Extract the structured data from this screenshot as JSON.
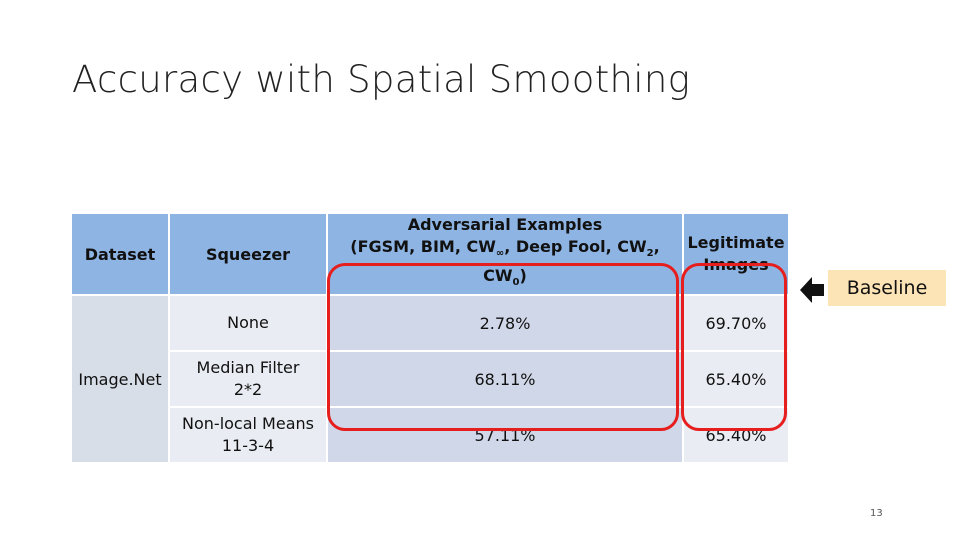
{
  "slide": {
    "title": "Accuracy with Spatial Smoothing",
    "page_number": "13"
  },
  "table": {
    "headers": {
      "dataset": "Dataset",
      "squeezer": "Squeezer",
      "adversarial_line1": "Adversarial Examples",
      "adversarial_line2": "(FGSM, BIM, CW∞, Deep Fool, CW2, CW0)",
      "legitimate_line1": "Legitimate",
      "legitimate_line2": "Images"
    },
    "dataset_name": "Image.Net",
    "rows": [
      {
        "squeezer_line1": "None",
        "squeezer_line2": "",
        "adversarial": "2.78%",
        "legitimate": "69.70%"
      },
      {
        "squeezer_line1": "Median Filter",
        "squeezer_line2": "2*2",
        "adversarial": "68.11%",
        "legitimate": "65.40%"
      },
      {
        "squeezer_line1": "Non-local Means",
        "squeezer_line2": "11-3-4",
        "adversarial": "57.11%",
        "legitimate": "65.40%"
      }
    ]
  },
  "callout": {
    "label": "Baseline"
  },
  "colors": {
    "header_blue": "#8eb4e3",
    "highlight_red": "#e61e1e",
    "callout_bg": "#fce4b6"
  }
}
